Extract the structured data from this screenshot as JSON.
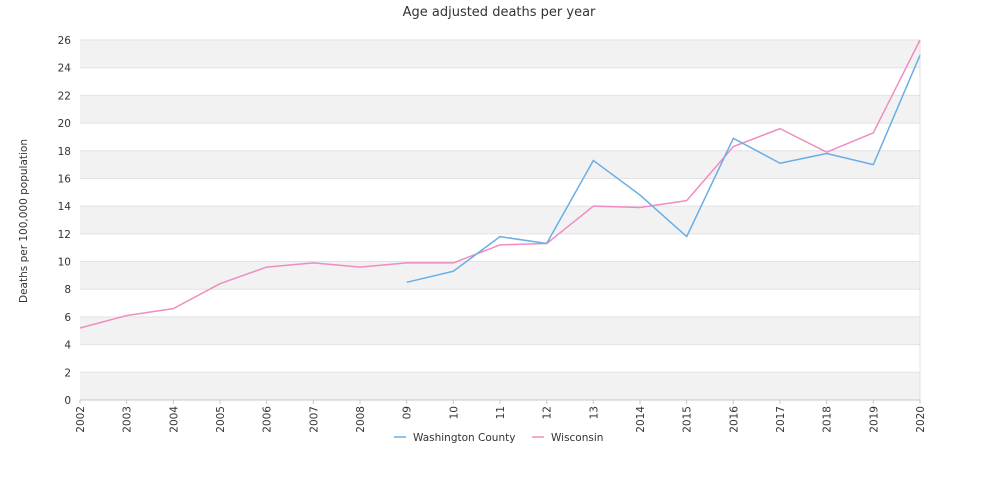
{
  "chart_data": {
    "type": "line",
    "title": "Age adjusted deaths per year",
    "xlabel": "",
    "ylabel": "Deaths per 100,000 population",
    "categories": [
      "2002",
      "2003",
      "2004",
      "2005",
      "2006",
      "2007",
      "2008",
      "09",
      "10",
      "11",
      "12",
      "13",
      "2014",
      "2015",
      "2016",
      "2017",
      "2018",
      "2019",
      "2020"
    ],
    "ylim": [
      0,
      26
    ],
    "yticks": [
      0,
      2,
      4,
      6,
      8,
      10,
      12,
      14,
      16,
      18,
      20,
      22,
      24,
      26
    ],
    "grid": "horizontal bands",
    "legend_position": "bottom",
    "series": [
      {
        "name": "Washington County",
        "color": "#6aaee8",
        "values": [
          null,
          null,
          null,
          null,
          null,
          null,
          null,
          8.5,
          9.3,
          11.8,
          11.3,
          17.3,
          14.8,
          11.8,
          18.9,
          17.1,
          17.8,
          17.0,
          24.9
        ]
      },
      {
        "name": "Wisconsin",
        "color": "#f08cc0",
        "values": [
          5.2,
          6.1,
          6.6,
          8.4,
          9.6,
          9.9,
          9.6,
          9.9,
          9.9,
          11.2,
          11.3,
          14.0,
          13.9,
          14.4,
          18.3,
          19.6,
          17.9,
          19.3,
          26.0
        ]
      }
    ]
  }
}
